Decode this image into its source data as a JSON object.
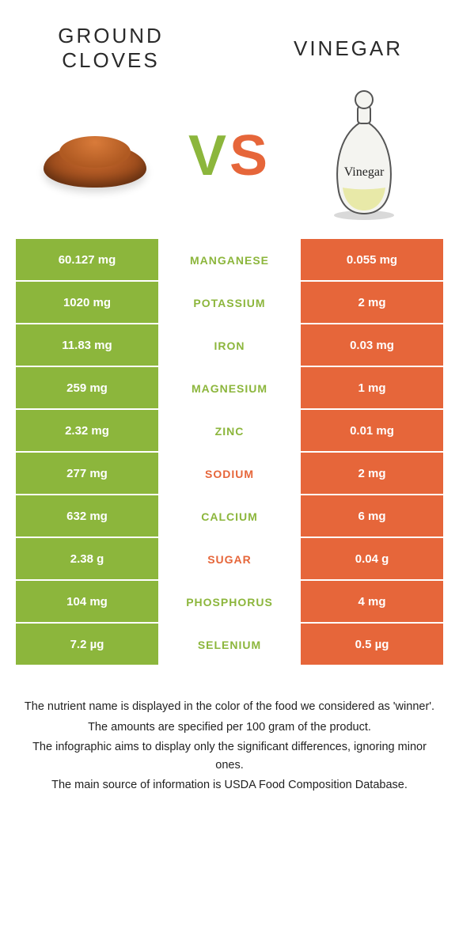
{
  "header": {
    "left_title": "GROUND CLOVES",
    "right_title": "VINEGAR",
    "vs": {
      "v": "V",
      "s": "S"
    },
    "bottle_label": "Vinegar"
  },
  "colors": {
    "left": "#8cb63c",
    "right": "#e6663a",
    "left_text_on_white": "#8cb63c",
    "right_text_on_white": "#e6663a"
  },
  "vs_colors": {
    "v": "#8cb63c",
    "s": "#e6663a"
  },
  "rows": [
    {
      "left": "60.127 mg",
      "label": "Manganese",
      "right": "0.055 mg",
      "winner": "left"
    },
    {
      "left": "1020 mg",
      "label": "Potassium",
      "right": "2 mg",
      "winner": "left"
    },
    {
      "left": "11.83 mg",
      "label": "Iron",
      "right": "0.03 mg",
      "winner": "left"
    },
    {
      "left": "259 mg",
      "label": "Magnesium",
      "right": "1 mg",
      "winner": "left"
    },
    {
      "left": "2.32 mg",
      "label": "Zinc",
      "right": "0.01 mg",
      "winner": "left"
    },
    {
      "left": "277 mg",
      "label": "Sodium",
      "right": "2 mg",
      "winner": "right"
    },
    {
      "left": "632 mg",
      "label": "Calcium",
      "right": "6 mg",
      "winner": "left"
    },
    {
      "left": "2.38 g",
      "label": "Sugar",
      "right": "0.04 g",
      "winner": "right"
    },
    {
      "left": "104 mg",
      "label": "Phosphorus",
      "right": "4 mg",
      "winner": "left"
    },
    {
      "left": "7.2 µg",
      "label": "Selenium",
      "right": "0.5 µg",
      "winner": "left"
    }
  ],
  "notes": [
    "The nutrient name is displayed in the color of the food we considered as 'winner'.",
    "The amounts are specified per 100 gram of the product.",
    "The infographic aims to display only the significant differences, ignoring minor ones.",
    "The main source of information is USDA Food Composition Database."
  ]
}
